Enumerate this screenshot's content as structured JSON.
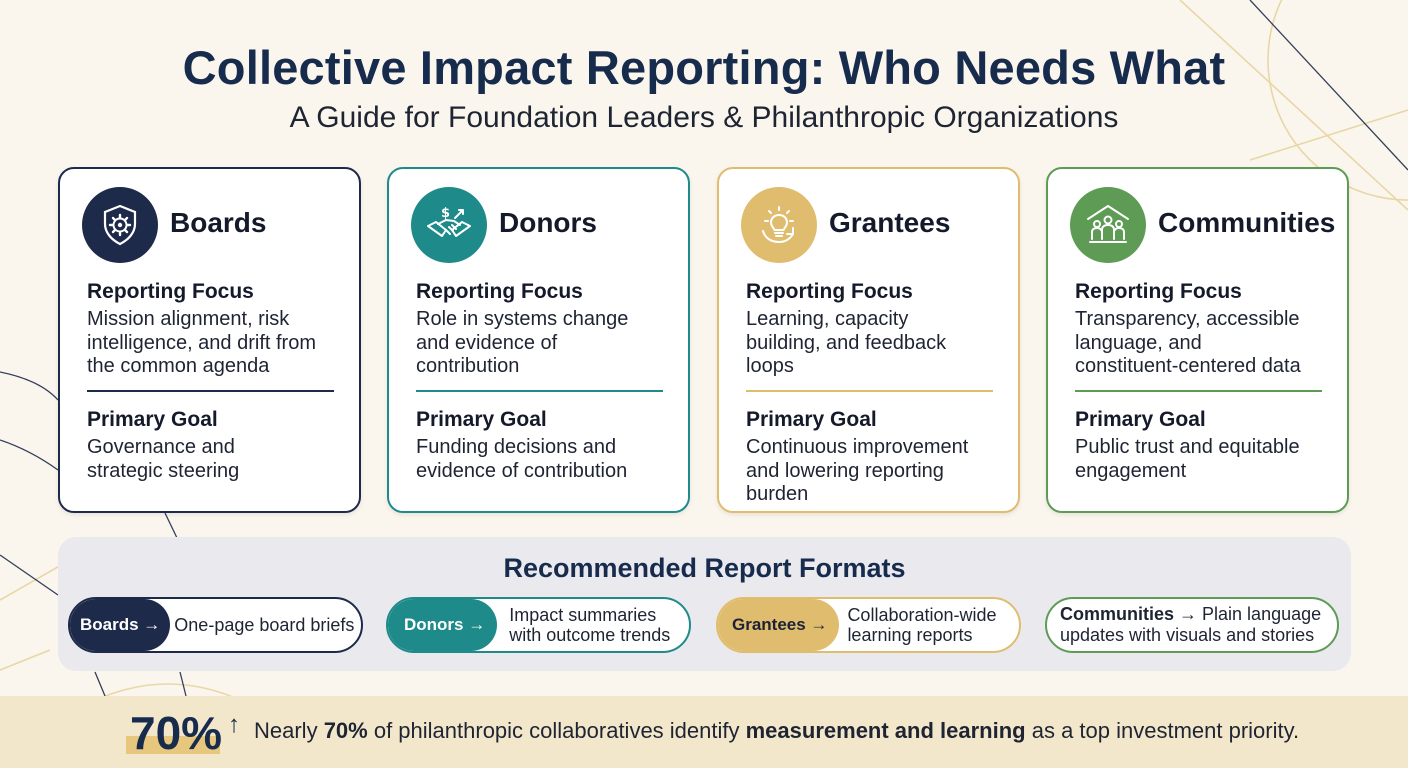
{
  "header": {
    "title": "Collective Impact Reporting: Who Needs What",
    "subtitle": "A Guide for Foundation Leaders & Philanthropic Organizations"
  },
  "colors": {
    "navy": "#1e2a4a",
    "teal": "#1f8a8a",
    "gold": "#e0bd6e",
    "green": "#5e9b55"
  },
  "cards": [
    {
      "title": "Boards",
      "icon": "shield-gear-icon",
      "focus_heading": "Reporting Focus",
      "focus_lines": [
        "Mission alignment, risk",
        "intelligence, and drift from",
        "the common agenda"
      ],
      "goal_heading": "Primary Goal",
      "goal_lines": [
        "Governance and",
        "strategic steering"
      ]
    },
    {
      "title": "Donors",
      "icon": "handshake-dollar-icon",
      "focus_heading": "Reporting Focus",
      "focus_lines": [
        "Role in systems change",
        "and evidence of",
        "contribution"
      ],
      "goal_heading": "Primary Goal",
      "goal_lines": [
        "Funding decisions and",
        "evidence of contribution"
      ]
    },
    {
      "title": "Grantees",
      "icon": "lightbulb-cycle-icon",
      "focus_heading": "Reporting Focus",
      "focus_lines": [
        "Learning, capacity",
        "building, and feedback",
        "loops"
      ],
      "goal_heading": "Primary Goal",
      "goal_lines": [
        "Continuous improvement",
        "and lowering reporting",
        "burden"
      ]
    },
    {
      "title": "Communities",
      "icon": "community-people-icon",
      "focus_heading": "Reporting Focus",
      "focus_lines": [
        "Transparency, accessible",
        "language, and",
        "constituent-centered data"
      ],
      "goal_heading": "Primary Goal",
      "goal_lines": [
        "Public trust and equitable",
        "engagement"
      ]
    }
  ],
  "formats": {
    "title": "Recommended Report Formats",
    "items": [
      {
        "tag": "Boards →",
        "lines": [
          "One-page board briefs"
        ]
      },
      {
        "tag": "Donors →",
        "lines": [
          "Impact summaries",
          "with outcome trends"
        ]
      },
      {
        "tag": "Grantees →",
        "lines": [
          "Collaboration-wide",
          "learning reports"
        ]
      },
      {
        "tag": "Communities →",
        "lines": [
          "Plain language",
          "updates with visuals and stories"
        ]
      }
    ]
  },
  "stat": {
    "number": "70%",
    "arrow": "↑",
    "text_before": "Nearly ",
    "text_bold1": "70%",
    "text_middle": " of philanthropic collaboratives identify ",
    "text_bold2": "measurement and learning",
    "text_after": " as a top investment priority."
  }
}
